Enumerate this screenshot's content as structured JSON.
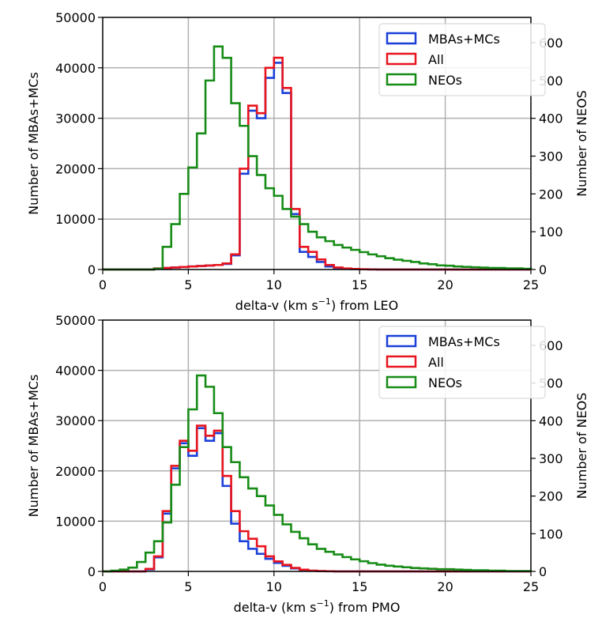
{
  "colors": {
    "mbas": "#1a3fd9",
    "all": "#e8141e",
    "neos": "#168c16",
    "grid": "#b0b0b0"
  },
  "chart_data": [
    {
      "type": "histogram",
      "xlabel_pre": "delta-v (km s",
      "xlabel_sup": "−1",
      "xlabel_post": ") from LEO",
      "ylabel": "Number of MBAs+MCs",
      "ylabel_right": "Number of NEOS",
      "xlim": [
        0,
        25
      ],
      "ylim": [
        0,
        50000
      ],
      "ylim_right": [
        0,
        667
      ],
      "xticks": [
        "0",
        "5",
        "10",
        "15",
        "20",
        "25"
      ],
      "yticks": [
        "0",
        "10000",
        "20000",
        "30000",
        "40000",
        "50000"
      ],
      "yticks_right": [
        "0",
        "100",
        "200",
        "300",
        "400",
        "500",
        "600"
      ],
      "grid": true,
      "legend_placement": "top-right",
      "bin_width": 0.5,
      "series": [
        {
          "name": "MBAs+MCs",
          "axis": "left",
          "values": [
            0,
            0,
            0,
            0,
            0,
            0,
            200,
            300,
            400,
            500,
            600,
            700,
            800,
            900,
            1100,
            2800,
            19000,
            31500,
            30000,
            38000,
            41000,
            35000,
            11000,
            3500,
            2500,
            1500,
            600,
            300,
            150,
            80,
            40,
            20,
            0,
            0,
            0,
            0,
            0,
            0,
            0,
            0,
            0,
            0,
            0,
            0,
            0,
            0,
            0,
            0,
            0,
            0
          ]
        },
        {
          "name": "All",
          "axis": "left",
          "values": [
            0,
            0,
            0,
            0,
            0,
            0,
            200,
            300,
            400,
            500,
            600,
            700,
            800,
            900,
            1200,
            3000,
            20000,
            32500,
            31000,
            40000,
            42000,
            36000,
            12000,
            4500,
            3500,
            2000,
            900,
            400,
            200,
            100,
            50,
            20,
            0,
            0,
            0,
            0,
            0,
            0,
            0,
            0,
            0,
            0,
            0,
            0,
            0,
            0,
            0,
            0,
            0,
            0
          ]
        },
        {
          "name": "NEOs",
          "axis": "right",
          "values": [
            0,
            0,
            0,
            0,
            0,
            0,
            2,
            60,
            120,
            200,
            270,
            360,
            500,
            590,
            560,
            440,
            380,
            300,
            250,
            215,
            195,
            160,
            140,
            120,
            100,
            85,
            75,
            65,
            58,
            52,
            46,
            40,
            35,
            30,
            26,
            23,
            20,
            16,
            14,
            11,
            10,
            8,
            7,
            6,
            5,
            4,
            4,
            3,
            3,
            2
          ]
        }
      ]
    },
    {
      "type": "histogram",
      "xlabel_pre": "delta-v (km s",
      "xlabel_sup": "−1",
      "xlabel_post": ") from PMO",
      "ylabel": "Number of MBAs+MCs",
      "ylabel_right": "Number of NEOS",
      "xlim": [
        0,
        25
      ],
      "ylim": [
        0,
        50000
      ],
      "ylim_right": [
        0,
        667
      ],
      "xticks": [
        "0",
        "5",
        "10",
        "15",
        "20",
        "25"
      ],
      "yticks": [
        "0",
        "10000",
        "20000",
        "30000",
        "40000",
        "50000"
      ],
      "yticks_right": [
        "0",
        "100",
        "200",
        "300",
        "400",
        "500",
        "600"
      ],
      "grid": true,
      "legend_placement": "top-right",
      "bin_width": 0.5,
      "series": [
        {
          "name": "MBAs+MCs",
          "axis": "left",
          "values": [
            0,
            0,
            0,
            0,
            0,
            400,
            2800,
            11500,
            20500,
            25500,
            23000,
            28500,
            26000,
            27500,
            17000,
            9500,
            6000,
            4500,
            3500,
            2500,
            1700,
            1100,
            600,
            300,
            120,
            60,
            30,
            0,
            0,
            0,
            0,
            0,
            0,
            0,
            0,
            0,
            0,
            0,
            0,
            0,
            0,
            0,
            0,
            0,
            0,
            0,
            0,
            0,
            0,
            0
          ]
        },
        {
          "name": "All",
          "axis": "left",
          "values": [
            0,
            0,
            0,
            0,
            0,
            500,
            3000,
            12000,
            21000,
            26000,
            24000,
            29000,
            27000,
            28000,
            19000,
            12000,
            8000,
            6500,
            5000,
            3000,
            2000,
            1300,
            700,
            350,
            150,
            80,
            40,
            0,
            0,
            0,
            0,
            0,
            0,
            0,
            0,
            0,
            0,
            0,
            0,
            0,
            0,
            0,
            0,
            0,
            0,
            0,
            0,
            0,
            0,
            0
          ]
        },
        {
          "name": "NEOs",
          "axis": "right",
          "values": [
            0,
            2,
            5,
            10,
            25,
            50,
            80,
            130,
            230,
            330,
            430,
            520,
            490,
            420,
            330,
            290,
            250,
            220,
            200,
            175,
            150,
            125,
            105,
            88,
            72,
            60,
            52,
            45,
            38,
            32,
            27,
            22,
            18,
            15,
            13,
            11,
            9,
            8,
            7,
            6,
            6,
            5,
            4,
            3,
            3,
            2,
            2,
            1,
            1,
            1
          ]
        }
      ]
    }
  ]
}
